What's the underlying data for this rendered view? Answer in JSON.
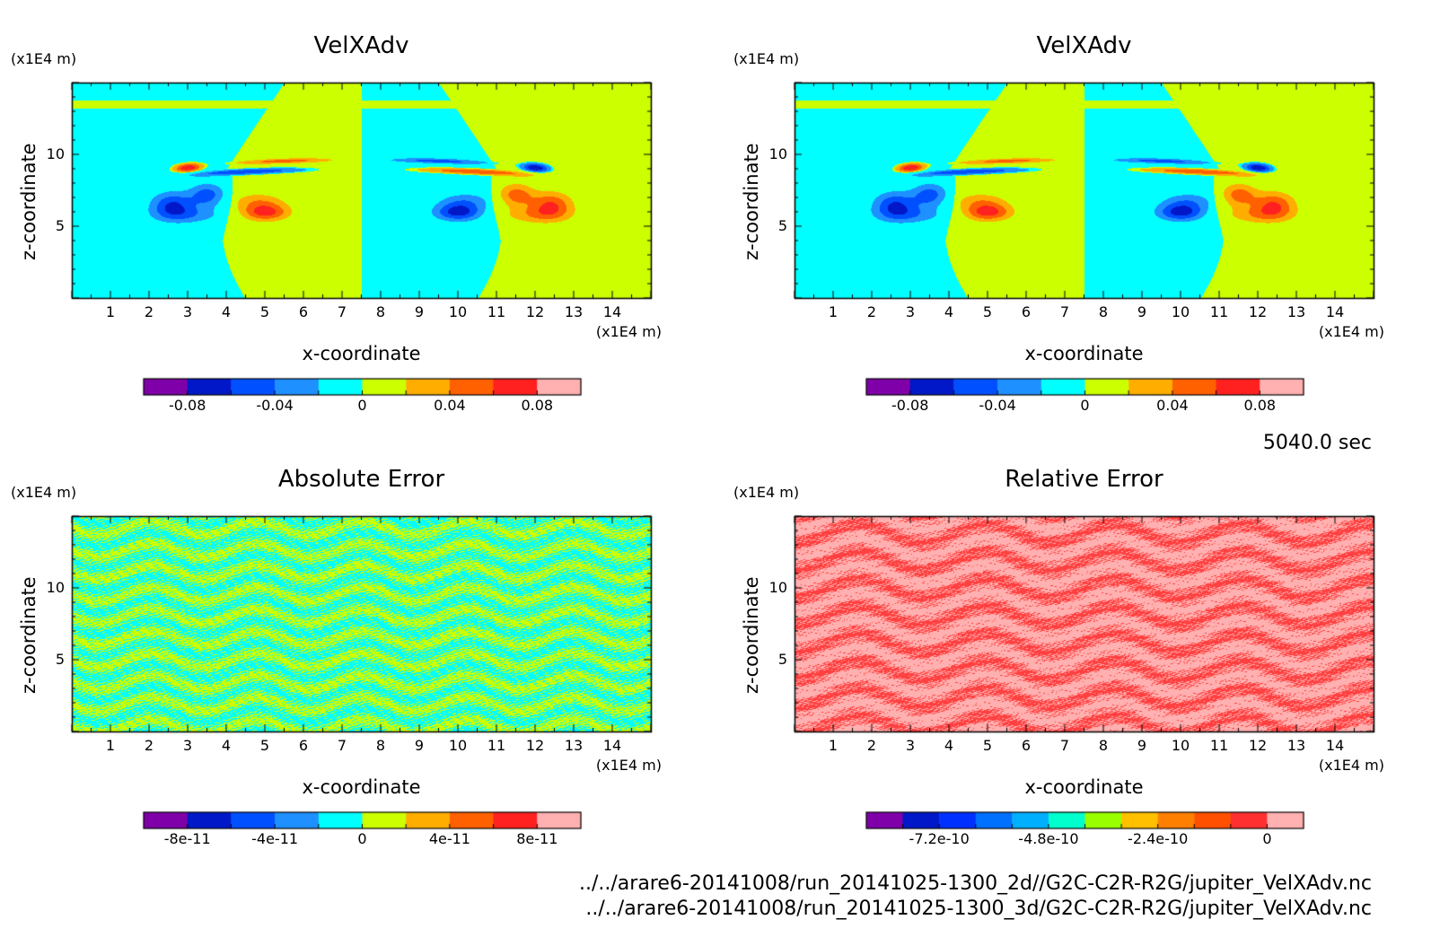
{
  "figure": {
    "time_label": "5040.0 sec",
    "file_paths": [
      "../../arare6-20141008/run_20141025-1300_2d//G2C-C2R-R2G/jupiter_VelXAdv.nc",
      "../../arare6-20141008/run_20141025-1300_3d/G2C-C2R-R2G/jupiter_VelXAdv.nc"
    ]
  },
  "chart_data": [
    {
      "id": "velx-2d",
      "type": "heatmap",
      "title": "VelXAdv",
      "xlabel": "x-coordinate",
      "ylabel": "z-coordinate",
      "x_unit": "(x1E4 m)",
      "y_unit": "(x1E4 m)",
      "xlim": [
        0,
        15
      ],
      "ylim": [
        0,
        15
      ],
      "x_ticks": [
        "1",
        "2",
        "3",
        "4",
        "5",
        "6",
        "7",
        "8",
        "9",
        "10",
        "11",
        "12",
        "13",
        "14"
      ],
      "y_ticks": [
        "5",
        "10"
      ],
      "colorbar_labels": [
        "-0.08",
        "-0.04",
        "0",
        "0.04",
        "0.08"
      ],
      "colorbar_colors": [
        "#7f00a8",
        "#0018c8",
        "#0050ff",
        "#1e90ff",
        "#00ffff",
        "#ccff00",
        "#ffae00",
        "#ff6000",
        "#ff2020",
        "#ffb0b0"
      ],
      "pattern": "field"
    },
    {
      "id": "velx-3d",
      "type": "heatmap",
      "title": "VelXAdv",
      "xlabel": "x-coordinate",
      "ylabel": "z-coordinate",
      "x_unit": "(x1E4 m)",
      "y_unit": "(x1E4 m)",
      "xlim": [
        0,
        15
      ],
      "ylim": [
        0,
        15
      ],
      "x_ticks": [
        "1",
        "2",
        "3",
        "4",
        "5",
        "6",
        "7",
        "8",
        "9",
        "10",
        "11",
        "12",
        "13",
        "14"
      ],
      "y_ticks": [
        "5",
        "10"
      ],
      "colorbar_labels": [
        "-0.08",
        "-0.04",
        "0",
        "0.04",
        "0.08"
      ],
      "colorbar_colors": [
        "#7f00a8",
        "#0018c8",
        "#0050ff",
        "#1e90ff",
        "#00ffff",
        "#ccff00",
        "#ffae00",
        "#ff6000",
        "#ff2020",
        "#ffb0b0"
      ],
      "pattern": "field"
    },
    {
      "id": "abs-error",
      "type": "heatmap",
      "title": "Absolute Error",
      "xlabel": "x-coordinate",
      "ylabel": "z-coordinate",
      "x_unit": "(x1E4 m)",
      "y_unit": "(x1E4 m)",
      "xlim": [
        0,
        15
      ],
      "ylim": [
        0,
        15
      ],
      "x_ticks": [
        "1",
        "2",
        "3",
        "4",
        "5",
        "6",
        "7",
        "8",
        "9",
        "10",
        "11",
        "12",
        "13",
        "14"
      ],
      "y_ticks": [
        "5",
        "10"
      ],
      "colorbar_labels": [
        "-8e-11",
        "-4e-11",
        "0",
        "4e-11",
        "8e-11"
      ],
      "colorbar_colors": [
        "#7f00a8",
        "#0018c8",
        "#0050ff",
        "#1e90ff",
        "#00ffff",
        "#ccff00",
        "#ffae00",
        "#ff6000",
        "#ff2020",
        "#ffb0b0"
      ],
      "pattern": "abs"
    },
    {
      "id": "rel-error",
      "type": "heatmap",
      "title": "Relative Error",
      "xlabel": "x-coordinate",
      "ylabel": "z-coordinate",
      "x_unit": "(x1E4 m)",
      "y_unit": "(x1E4 m)",
      "xlim": [
        0,
        15
      ],
      "ylim": [
        0,
        15
      ],
      "x_ticks": [
        "1",
        "2",
        "3",
        "4",
        "5",
        "6",
        "7",
        "8",
        "9",
        "10",
        "11",
        "12",
        "13",
        "14"
      ],
      "y_ticks": [
        "5",
        "10"
      ],
      "colorbar_labels": [
        "-7.2e-10",
        "-4.8e-10",
        "-2.4e-10",
        "0"
      ],
      "colorbar_colors": [
        "#7f00a8",
        "#0018c8",
        "#0030ff",
        "#0070ff",
        "#00b0ff",
        "#00ffcc",
        "#99ff00",
        "#ffc000",
        "#ff8000",
        "#ff5000",
        "#ff3030",
        "#ffb0b0"
      ],
      "pattern": "rel"
    }
  ]
}
